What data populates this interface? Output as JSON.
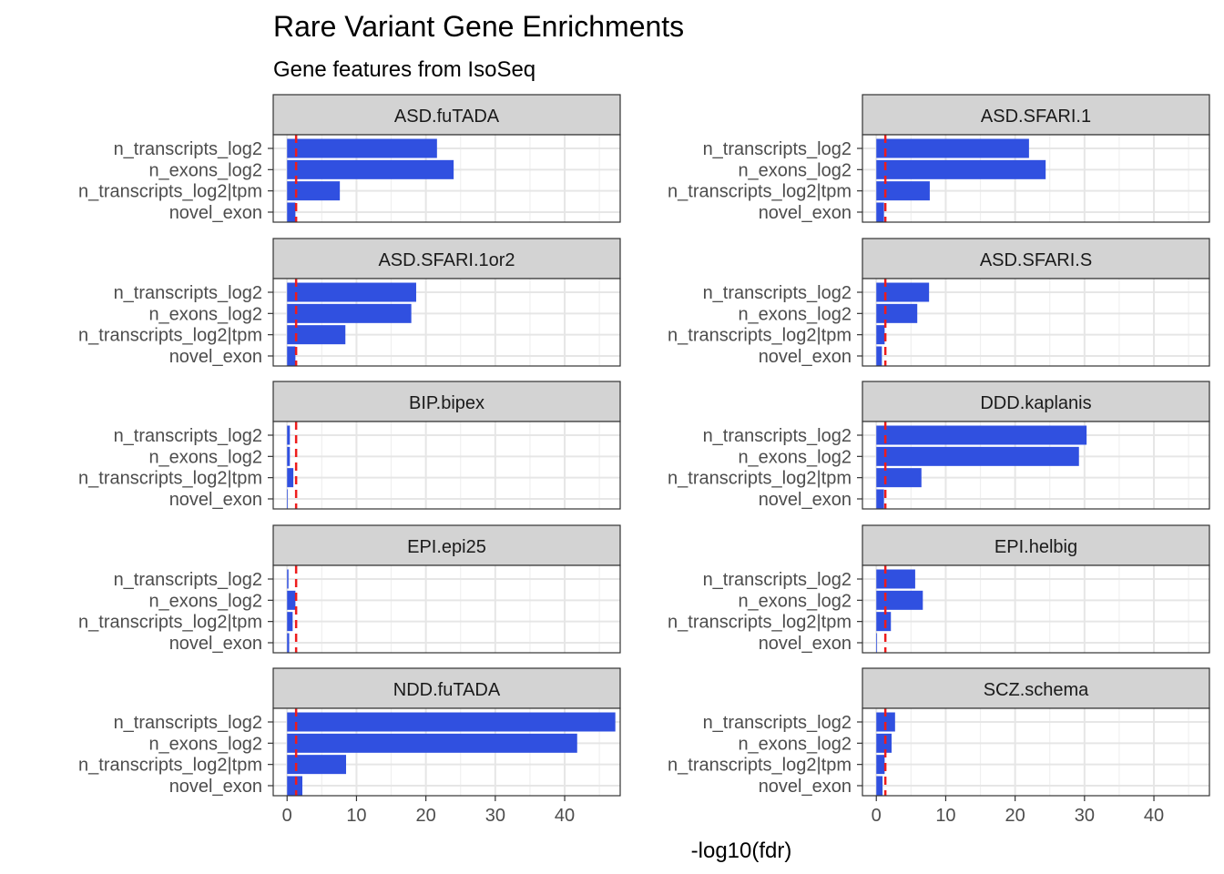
{
  "chart_data": {
    "type": "bar",
    "orientation": "horizontal",
    "title": "Rare Variant Gene Enrichments",
    "subtitle": "Gene features from IsoSeq",
    "xlabel": "-log10(fdr)",
    "ylabel": "",
    "xlim": [
      -2,
      48
    ],
    "x_ticks": [
      0,
      10,
      20,
      30,
      40
    ],
    "threshold": 1.3,
    "grid": true,
    "bar_color": "#3050e0",
    "threshold_color": "#ee1c1c",
    "strip_color": "#d3d3d3",
    "categories": [
      "n_transcripts_log2",
      "n_exons_log2",
      "n_transcripts_log2|tpm",
      "novel_exon"
    ],
    "panels": [
      {
        "name": "ASD.fuTADA",
        "values": [
          21.6,
          24.0,
          7.6,
          1.2
        ]
      },
      {
        "name": "ASD.SFARI.1",
        "values": [
          22.0,
          24.4,
          7.7,
          1.1
        ]
      },
      {
        "name": "ASD.SFARI.1or2",
        "values": [
          18.6,
          17.9,
          8.4,
          1.2
        ]
      },
      {
        "name": "ASD.SFARI.S",
        "values": [
          7.6,
          5.9,
          1.2,
          0.8
        ]
      },
      {
        "name": "BIP.bipex",
        "values": [
          0.4,
          0.4,
          0.9,
          0.1
        ]
      },
      {
        "name": "DDD.kaplanis",
        "values": [
          30.3,
          29.2,
          6.5,
          1.1
        ]
      },
      {
        "name": "EPI.epi25",
        "values": [
          0.2,
          1.2,
          0.8,
          0.3
        ]
      },
      {
        "name": "EPI.helbig",
        "values": [
          5.6,
          6.7,
          2.1,
          0.1
        ]
      },
      {
        "name": "NDD.fuTADA",
        "values": [
          47.3,
          41.8,
          8.5,
          2.2
        ]
      },
      {
        "name": "SCZ.schema",
        "values": [
          2.7,
          2.2,
          1.2,
          0.9
        ]
      }
    ]
  }
}
